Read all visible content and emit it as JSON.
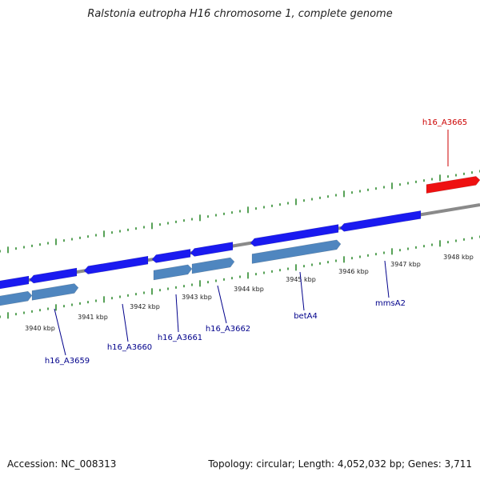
{
  "title": "Ralstonia eutropha H16 chromosome 1, complete genome",
  "footer": {
    "accession": "Accession: NC_008313",
    "summary": "Topology: circular; Length: 4,052,032 bp; Genes: 3,711"
  },
  "colors": {
    "backbone": "#8a8a8a",
    "tick": "#2e8b2e",
    "forward_gene": "#ee1111",
    "reverse_gene": "#1a1af0",
    "cds_track": "#4f86bf",
    "label_forward": "#cc0000",
    "label_reverse": "#00008b"
  },
  "scale": {
    "unit": "kbp",
    "ticks": [
      "3940 kbp",
      "3941 kbp",
      "3942 kbp",
      "3943 kbp",
      "3944 kbp",
      "3945 kbp",
      "3946 kbp",
      "3947 kbp",
      "3948 kbp"
    ]
  },
  "genes": [
    {
      "label": "h16_A3659",
      "strand": "reverse"
    },
    {
      "label": "h16_A3660",
      "strand": "reverse"
    },
    {
      "label": "h16_A3661",
      "strand": "reverse"
    },
    {
      "label": "h16_A3662",
      "strand": "reverse"
    },
    {
      "label": "betA4",
      "strand": "reverse"
    },
    {
      "label": "mmsA2",
      "strand": "reverse"
    },
    {
      "label": "h16_A3665",
      "strand": "forward"
    }
  ]
}
